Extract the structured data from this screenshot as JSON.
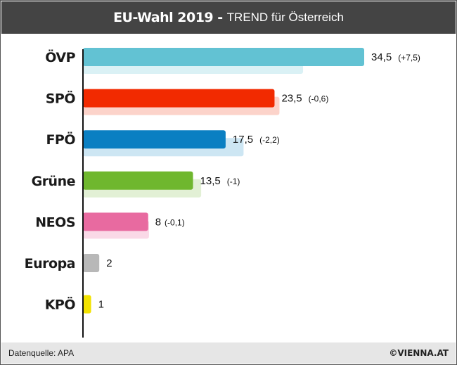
{
  "header": {
    "title_bold": "EU-Wahl 2019 -",
    "title_rest": "TREND für Österreich"
  },
  "footer": {
    "source": "Datenquelle: APA",
    "brand": "©VIENNA.AT"
  },
  "chart_data": {
    "type": "bar",
    "orientation": "horizontal",
    "title": "EU-Wahl 2019 - TREND für Österreich",
    "categories": [
      "ÖVP",
      "SPÖ",
      "FPÖ",
      "Grüne",
      "NEOS",
      "Europa",
      "KPÖ"
    ],
    "series": [
      {
        "values": [
          34.5,
          23.5,
          17.5,
          13.5,
          8,
          2,
          1
        ]
      },
      {
        "values": [
          27,
          24.1,
          19.7,
          14.5,
          8.1,
          null,
          null
        ]
      }
    ],
    "value_labels": [
      "34,5",
      "23,5",
      "17,5",
      "13,5",
      "8",
      "2",
      "1"
    ],
    "change_labels": [
      "(+7,5)",
      "(-0,6)",
      "(-2,2)",
      "(-1)",
      "(-0,1)",
      "",
      ""
    ],
    "colors": [
      "#62c2d3",
      "#f22a00",
      "#0a7fc2",
      "#6fb72e",
      "#e86aa0",
      "#b8b8b8",
      "#f2e200"
    ],
    "previous_colors": [
      "#daf1f5",
      "#fcd3ca",
      "#cde6f3",
      "#e2f0d5",
      "#fad9e7",
      "#eeeeee",
      "#fcf9c7"
    ],
    "xlim": [
      0,
      40
    ],
    "grid": false,
    "legend": "none"
  }
}
